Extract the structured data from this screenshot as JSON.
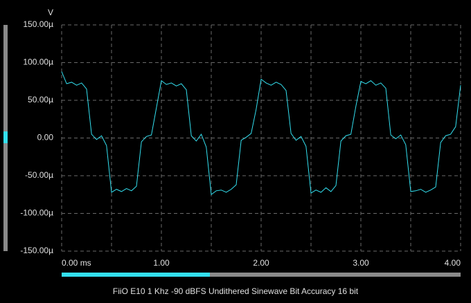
{
  "chart_data": {
    "type": "line",
    "title": "FiiO E10 1 Khz -90 dBFS Undithered Sinewave Bit Accuracy 16 bit",
    "y_label": "V",
    "x": [
      0,
      0.05,
      0.1,
      0.15,
      0.2,
      0.25,
      0.3,
      0.35,
      0.4,
      0.45,
      0.5,
      0.55,
      0.6,
      0.65,
      0.7,
      0.75,
      0.8,
      0.85,
      0.9,
      0.95,
      1,
      1.05,
      1.1,
      1.15,
      1.2,
      1.25,
      1.3,
      1.35,
      1.4,
      1.45,
      1.5,
      1.55,
      1.6,
      1.65,
      1.7,
      1.75,
      1.8,
      1.85,
      1.9,
      1.95,
      2,
      2.05,
      2.1,
      2.15,
      2.2,
      2.25,
      2.3,
      2.35,
      2.4,
      2.45,
      2.5,
      2.55,
      2.6,
      2.65,
      2.7,
      2.75,
      2.8,
      2.85,
      2.9,
      2.95,
      3,
      3.05,
      3.1,
      3.15,
      3.2,
      3.25,
      3.3,
      3.35,
      3.4,
      3.45,
      3.5,
      3.55,
      3.6,
      3.65,
      3.7,
      3.75,
      3.8,
      3.85,
      3.9,
      3.95,
      4
    ],
    "series": [
      {
        "name": "V",
        "color": "#33e0f0",
        "values": [
          8.8e-05,
          7.2e-05,
          7.4e-05,
          7e-05,
          7.3e-05,
          6.5e-05,
          5e-06,
          -2e-06,
          3e-06,
          -1e-05,
          -7.2e-05,
          -6.8e-05,
          -7.1e-05,
          -6.7e-05,
          -7e-05,
          -6.4e-05,
          -5e-06,
          2e-06,
          4e-06,
          4e-05,
          7.6e-05,
          7.1e-05,
          7.3e-05,
          6.9e-05,
          7.2e-05,
          6.4e-05,
          3e-06,
          -4e-06,
          5e-06,
          -1.2e-05,
          -7.5e-05,
          -7e-05,
          -6.9e-05,
          -7.2e-05,
          -6.8e-05,
          -6.2e-05,
          -3e-06,
          1e-06,
          6e-06,
          3.8e-05,
          7.8e-05,
          7.3e-05,
          7e-05,
          7.4e-05,
          7.1e-05,
          6.3e-05,
          6e-06,
          -3e-06,
          2e-06,
          -1.1e-05,
          -7.3e-05,
          -6.9e-05,
          -7.2e-05,
          -6.6e-05,
          -7.1e-05,
          -6.3e-05,
          -4e-06,
          3e-06,
          5e-06,
          4.2e-05,
          7.5e-05,
          7.2e-05,
          7.6e-05,
          7e-05,
          7.3e-05,
          6.6e-05,
          4e-06,
          -1e-06,
          4e-06,
          -9e-06,
          -7.1e-05,
          -7e-05,
          -6.8e-05,
          -7.2e-05,
          -6.9e-05,
          -6.5e-05,
          -6e-06,
          3e-06,
          5e-06,
          1.5e-05,
          7e-05
        ]
      }
    ],
    "xlim": [
      0,
      4
    ],
    "xticks": [
      {
        "value": 0,
        "label": "0.00 ms"
      },
      {
        "value": 1,
        "label": "1.00"
      },
      {
        "value": 2,
        "label": "2.00"
      },
      {
        "value": 3,
        "label": "3.00"
      },
      {
        "value": 4,
        "label": "4.00"
      }
    ],
    "xgrid_minor": [
      0.5,
      1.5,
      2.5,
      3.5
    ],
    "ylim": [
      -0.00015,
      0.00015
    ],
    "yticks": [
      {
        "value": 0.00015,
        "label": "150.00µ"
      },
      {
        "value": 0.0001,
        "label": "100.00µ"
      },
      {
        "value": 5e-05,
        "label": "50.00µ"
      },
      {
        "value": 0,
        "label": "0.00"
      },
      {
        "value": -5e-05,
        "label": "-50.00µ"
      },
      {
        "value": -0.0001,
        "label": "-100.00µ"
      },
      {
        "value": -0.00015,
        "label": "-150.00µ"
      }
    ],
    "grid": true
  }
}
